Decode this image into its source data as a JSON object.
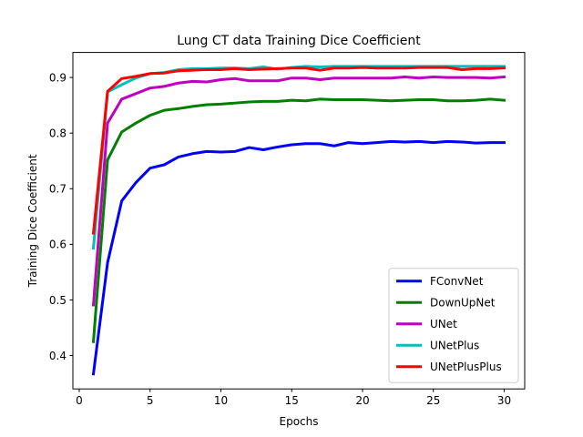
{
  "chart_data": {
    "type": "line",
    "title": "Lung CT data Training Dice Coefficient",
    "xlabel": "Epochs",
    "ylabel": "Training Dice Coefficient",
    "xlim": [
      -0.45,
      31.45
    ],
    "ylim": [
      0.34,
      0.945
    ],
    "xticks": [
      0,
      5,
      10,
      15,
      20,
      25,
      30
    ],
    "yticks": [
      0.4,
      0.5,
      0.6,
      0.7,
      0.8,
      0.9
    ],
    "grid": false,
    "legend_position": "lower-right",
    "x": [
      1,
      2,
      3,
      4,
      5,
      6,
      7,
      8,
      9,
      10,
      11,
      12,
      13,
      14,
      15,
      16,
      17,
      18,
      19,
      20,
      21,
      22,
      23,
      24,
      25,
      26,
      27,
      28,
      29,
      30
    ],
    "series": [
      {
        "name": "FConvNet",
        "color": "#0000ff",
        "values": [
          0.367,
          0.567,
          0.678,
          0.711,
          0.737,
          0.743,
          0.757,
          0.763,
          0.767,
          0.766,
          0.767,
          0.774,
          0.77,
          0.775,
          0.779,
          0.781,
          0.781,
          0.777,
          0.783,
          0.781,
          0.783,
          0.785,
          0.784,
          0.785,
          0.783,
          0.785,
          0.784,
          0.782,
          0.783,
          0.783
        ]
      },
      {
        "name": "DownUpNet",
        "color": "#008000",
        "values": [
          0.425,
          0.752,
          0.802,
          0.818,
          0.832,
          0.841,
          0.844,
          0.848,
          0.851,
          0.852,
          0.854,
          0.856,
          0.857,
          0.857,
          0.859,
          0.858,
          0.861,
          0.86,
          0.86,
          0.86,
          0.859,
          0.858,
          0.859,
          0.86,
          0.86,
          0.858,
          0.858,
          0.859,
          0.861,
          0.859
        ]
      },
      {
        "name": "UNet",
        "color": "#bf00bf",
        "values": [
          0.491,
          0.818,
          0.861,
          0.871,
          0.881,
          0.884,
          0.89,
          0.893,
          0.892,
          0.896,
          0.898,
          0.894,
          0.894,
          0.894,
          0.899,
          0.899,
          0.896,
          0.899,
          0.899,
          0.899,
          0.899,
          0.899,
          0.901,
          0.899,
          0.901,
          0.9,
          0.9,
          0.9,
          0.899,
          0.901
        ]
      },
      {
        "name": "UNetPlus",
        "color": "#00bfbf",
        "values": [
          0.593,
          0.874,
          0.887,
          0.899,
          0.907,
          0.909,
          0.914,
          0.916,
          0.916,
          0.917,
          0.917,
          0.916,
          0.919,
          0.915,
          0.918,
          0.92,
          0.919,
          0.92,
          0.92,
          0.92,
          0.92,
          0.92,
          0.92,
          0.92,
          0.92,
          0.92,
          0.92,
          0.92,
          0.92,
          0.92
        ]
      },
      {
        "name": "UNetPlusPlus",
        "color": "#ff0000",
        "values": [
          0.62,
          0.875,
          0.898,
          0.902,
          0.907,
          0.908,
          0.912,
          0.913,
          0.914,
          0.914,
          0.916,
          0.914,
          0.915,
          0.916,
          0.917,
          0.917,
          0.913,
          0.917,
          0.917,
          0.918,
          0.917,
          0.917,
          0.917,
          0.918,
          0.918,
          0.918,
          0.914,
          0.916,
          0.916,
          0.917
        ]
      }
    ]
  }
}
